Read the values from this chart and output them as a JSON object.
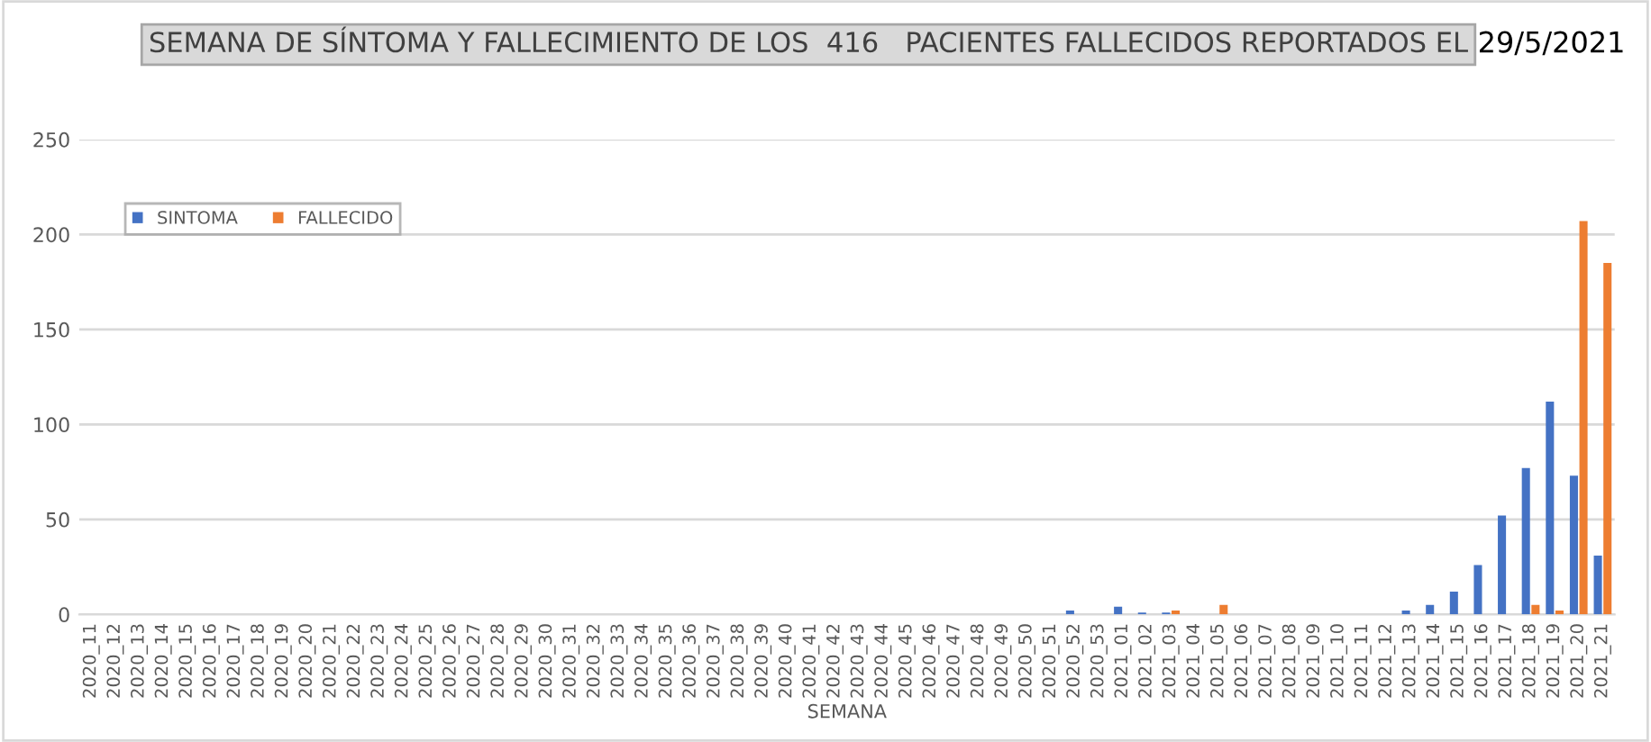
{
  "chart_data": {
    "type": "bar",
    "title": "SEMANA DE SÍNTOMA Y FALLECIMIENTO DE LOS  416   PACIENTES FALLECIDOS REPORTADOS EL",
    "annotations": [
      "29/5/2021"
    ],
    "xlabel": "SEMANA",
    "categories": [
      "2020_11",
      "2020_12",
      "2020_13",
      "2020_14",
      "2020_15",
      "2020_16",
      "2020_17",
      "2020_18",
      "2020_19",
      "2020_20",
      "2020_21",
      "2020_22",
      "2020_23",
      "2020_24",
      "2020_25",
      "2020_26",
      "2020_27",
      "2020_28",
      "2020_29",
      "2020_30",
      "2020_31",
      "2020_32",
      "2020_33",
      "2020_34",
      "2020_35",
      "2020_36",
      "2020_37",
      "2020_38",
      "2020_39",
      "2020_40",
      "2020_41",
      "2020_42",
      "2020_43",
      "2020_44",
      "2020_45",
      "2020_46",
      "2020_47",
      "2020_48",
      "2020_49",
      "2020_50",
      "2020_51",
      "2020_52",
      "2020_53",
      "2021_01",
      "2021_02",
      "2021_03",
      "2021_04",
      "2021_05",
      "2021_06",
      "2021_07",
      "2021_08",
      "2021_09",
      "2021_10",
      "2021_11",
      "2021_12",
      "2021_13",
      "2021_14",
      "2021_15",
      "2021_16",
      "2021_17",
      "2021_18",
      "2021_19",
      "2021_20",
      "2021_21"
    ],
    "series": [
      {
        "name": "SINTOMA",
        "color": "#4472c4",
        "values": [
          0,
          0,
          0,
          0,
          0,
          0,
          0,
          0,
          0,
          0,
          0,
          0,
          0,
          0,
          0,
          0,
          0,
          0,
          0,
          0,
          0,
          0,
          0,
          0,
          0,
          0,
          0,
          0,
          0,
          0,
          0,
          0,
          0,
          0,
          0,
          0,
          0,
          0,
          0,
          0,
          0,
          2,
          0,
          4,
          1,
          1,
          0,
          0,
          0,
          0,
          0,
          0,
          0,
          0,
          0,
          2,
          5,
          12,
          26,
          52,
          77,
          112,
          73,
          31
        ]
      },
      {
        "name": "FALLECIDO",
        "color": "#ed7d31",
        "values": [
          0,
          0,
          0,
          0,
          0,
          0,
          0,
          0,
          0,
          0,
          0,
          0,
          0,
          0,
          0,
          0,
          0,
          0,
          0,
          0,
          0,
          0,
          0,
          0,
          0,
          0,
          0,
          0,
          0,
          0,
          0,
          0,
          0,
          0,
          0,
          0,
          0,
          0,
          0,
          0,
          0,
          0,
          0,
          0,
          0,
          2,
          0,
          5,
          0,
          0,
          0,
          0,
          0,
          0,
          0,
          0,
          0,
          0,
          0,
          0,
          5,
          2,
          207,
          185
        ]
      }
    ],
    "ylim": [
      0,
      250
    ],
    "yticks": [
      0,
      50,
      100,
      150,
      200,
      250
    ],
    "grid": "y",
    "legend": "top left"
  }
}
